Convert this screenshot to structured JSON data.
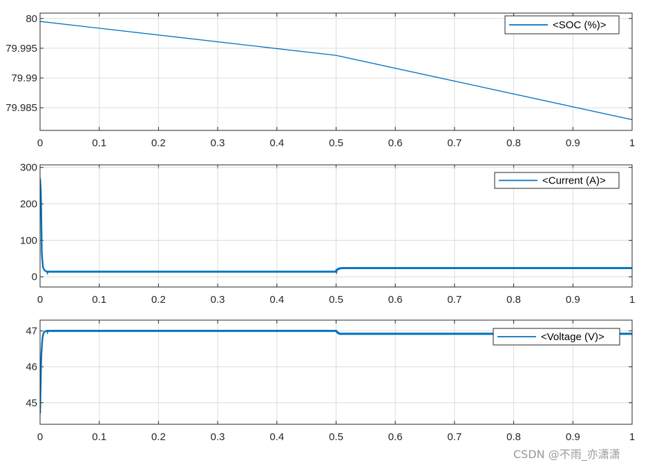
{
  "colors": {
    "series": "#0072BD",
    "grid": "#dcdcdc",
    "axis": "#262626",
    "background": "#ffffff"
  },
  "chart_data": [
    {
      "type": "line",
      "title": "",
      "xlabel": "",
      "ylabel": "",
      "xlim": [
        0,
        1
      ],
      "ylim": [
        79.9812,
        80.0009
      ],
      "grid": true,
      "legend_position": "top-right",
      "xticks": [
        "0",
        "0.1",
        "0.2",
        "0.3",
        "0.4",
        "0.5",
        "0.6",
        "0.7",
        "0.8",
        "0.9",
        "1"
      ],
      "yticks": [
        "79.985",
        "79.99",
        "79.995",
        "80"
      ],
      "series": [
        {
          "name": "<SOC (%)>",
          "x": [
            0,
            0.5,
            1
          ],
          "y": [
            79.9995,
            79.9938,
            79.983
          ]
        }
      ]
    },
    {
      "type": "line",
      "title": "",
      "xlabel": "",
      "ylabel": "",
      "xlim": [
        0,
        1
      ],
      "ylim": [
        -28,
        307
      ],
      "grid": true,
      "legend_position": "top-right",
      "xticks": [
        "0",
        "0.1",
        "0.2",
        "0.3",
        "0.4",
        "0.5",
        "0.6",
        "0.7",
        "0.8",
        "0.9",
        "1"
      ],
      "yticks": [
        "0",
        "100",
        "200",
        "300"
      ],
      "series": [
        {
          "name": "<Current (A)>",
          "x": [
            0,
            0.0015,
            0.003,
            0.005,
            0.008,
            0.012,
            0.5,
            0.501,
            0.504,
            0.51,
            1
          ],
          "y": [
            270,
            230,
            60,
            25,
            17,
            14,
            14,
            18,
            22,
            24,
            24
          ]
        }
      ]
    },
    {
      "type": "line",
      "title": "",
      "xlabel": "",
      "ylabel": "",
      "xlim": [
        0,
        1
      ],
      "ylim": [
        44.4,
        47.3
      ],
      "grid": true,
      "legend_position": "top-right",
      "xticks": [
        "0",
        "0.1",
        "0.2",
        "0.3",
        "0.4",
        "0.5",
        "0.6",
        "0.7",
        "0.8",
        "0.9",
        "1"
      ],
      "yticks": [
        "45",
        "46",
        "47"
      ],
      "series": [
        {
          "name": "<Voltage (V)>",
          "x": [
            0,
            0.001,
            0.002,
            0.004,
            0.006,
            0.01,
            0.5,
            0.502,
            0.506,
            1
          ],
          "y": [
            44.7,
            45.5,
            46.3,
            46.8,
            46.95,
            47.0,
            47.0,
            46.96,
            46.92,
            46.92
          ]
        }
      ]
    }
  ],
  "watermark": "CSDN @不雨_亦潇潇"
}
